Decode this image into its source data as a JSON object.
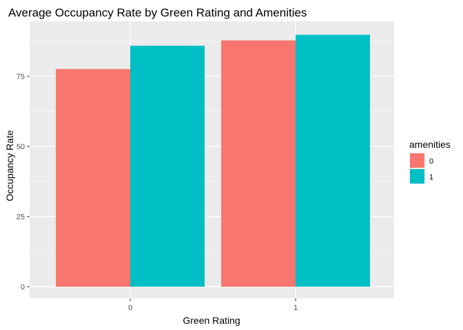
{
  "chart_data": {
    "type": "bar",
    "title": "Average Occupancy Rate by Green Rating and Amenities",
    "xlabel": "Green Rating",
    "ylabel": "Occupancy Rate",
    "categories": [
      "0",
      "1"
    ],
    "series": [
      {
        "name": "0",
        "values": [
          77.6,
          87.8
        ],
        "color": "#F8766D"
      },
      {
        "name": "1",
        "values": [
          85.9,
          89.8
        ],
        "color": "#00BFC4"
      }
    ],
    "ylim": [
      0,
      92.5
    ],
    "yticks": [
      0,
      25,
      50,
      75
    ],
    "ytick_labels": [
      "0",
      "25",
      "50",
      "75"
    ],
    "legend": {
      "title": "amenities",
      "position": "right"
    },
    "grid": true,
    "panel_background": "#EBEBEB"
  }
}
